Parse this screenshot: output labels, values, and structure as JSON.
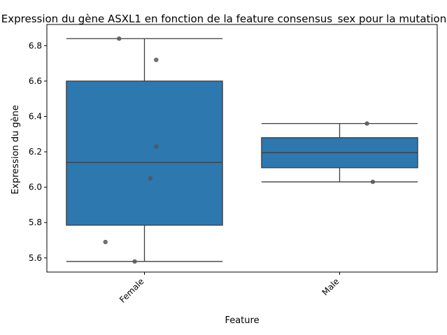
{
  "chart_data": {
    "type": "box",
    "title": "Expression du gène ASXL1 en fonction de la feature consensus_sex pour la mutation",
    "xlabel": "Feature",
    "ylabel": "Expression du gène",
    "ylim": [
      5.52,
      6.92
    ],
    "yticks": [
      "5.6",
      "5.8",
      "6.0",
      "6.2",
      "6.4",
      "6.6",
      "6.8"
    ],
    "box_color": "#2e78b0",
    "point_color": "#555555",
    "categories": [
      "Female",
      "Male"
    ],
    "boxes": [
      {
        "category": "Female",
        "whisker_low": 5.58,
        "q1": 5.785,
        "median": 6.14,
        "q3": 6.6,
        "whisker_high": 6.84
      },
      {
        "category": "Male",
        "whisker_low": 6.03,
        "q1": 6.11,
        "median": 6.195,
        "q3": 6.28,
        "whisker_high": 6.36
      }
    ],
    "points": [
      {
        "category": "Female",
        "y": 6.84,
        "jitter": -0.13
      },
      {
        "category": "Female",
        "y": 6.72,
        "jitter": 0.06
      },
      {
        "category": "Female",
        "y": 6.23,
        "jitter": 0.06
      },
      {
        "category": "Female",
        "y": 6.05,
        "jitter": 0.03
      },
      {
        "category": "Female",
        "y": 5.69,
        "jitter": -0.2
      },
      {
        "category": "Female",
        "y": 5.58,
        "jitter": -0.05
      },
      {
        "category": "Male",
        "y": 6.36,
        "jitter": 0.14
      },
      {
        "category": "Male",
        "y": 6.03,
        "jitter": 0.17
      }
    ]
  }
}
